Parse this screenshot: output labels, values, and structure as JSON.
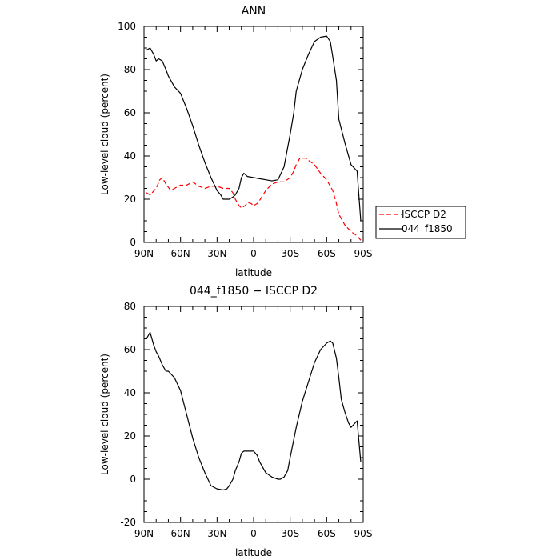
{
  "chart_data": [
    {
      "type": "line",
      "title": "ANN",
      "xlabel": "latitude",
      "ylabel": "Low-level cloud (percent)",
      "x_tick_labels": [
        "90N",
        "60N",
        "30N",
        "0",
        "30S",
        "60S",
        "90S"
      ],
      "x_tick_values": [
        90,
        60,
        30,
        0,
        -30,
        -60,
        -90
      ],
      "xlim": [
        90,
        -90
      ],
      "ylim": [
        0,
        100
      ],
      "y_ticks": [
        0,
        20,
        40,
        60,
        80,
        100
      ],
      "legend": "right",
      "series": [
        {
          "name": "ISCCP D2",
          "color": "#ff0000",
          "dash": "dashed",
          "x": [
            88,
            85,
            80,
            77,
            75,
            72,
            68,
            65,
            60,
            55,
            50,
            45,
            40,
            35,
            30,
            25,
            20,
            17,
            15,
            12,
            10,
            7,
            5,
            2,
            0,
            -3,
            -5,
            -10,
            -15,
            -20,
            -25,
            -30,
            -33,
            -35,
            -38,
            -40,
            -43,
            -45,
            -50,
            -55,
            -60,
            -65,
            -68,
            -70,
            -75,
            -80,
            -85,
            -88
          ],
          "y": [
            23,
            22,
            25,
            29,
            30,
            27,
            24,
            25,
            26.5,
            26.5,
            28,
            26,
            25,
            26,
            26,
            25,
            25,
            23,
            20,
            17,
            16,
            17,
            18.5,
            18,
            17,
            18,
            19.5,
            24,
            27,
            28,
            28,
            30,
            33,
            36,
            39,
            39,
            39,
            38,
            36,
            32,
            29,
            24,
            18,
            13,
            8,
            5,
            3,
            1
          ]
        },
        {
          "name": "044_f1850",
          "color": "#000000",
          "dash": "solid",
          "x": [
            88,
            85,
            82,
            80,
            78,
            75,
            72,
            70,
            65,
            60,
            55,
            50,
            45,
            40,
            35,
            30,
            27,
            25,
            22,
            20,
            17,
            15,
            12,
            10,
            8,
            5,
            0,
            -5,
            -10,
            -15,
            -20,
            -25,
            -30,
            -33,
            -35,
            -40,
            -45,
            -50,
            -55,
            -60,
            -63,
            -65,
            -68,
            -70,
            -75,
            -80,
            -85,
            -88
          ],
          "y": [
            89,
            90,
            87,
            84,
            85,
            84,
            80,
            77,
            72,
            69,
            62,
            54,
            45,
            37,
            30,
            24,
            22,
            20,
            20,
            20,
            21,
            22,
            25,
            30,
            32,
            30.5,
            30,
            29.5,
            29,
            28.5,
            29,
            35,
            50,
            60,
            70,
            80,
            87,
            93,
            95,
            95.5,
            93,
            86,
            75,
            57,
            46,
            36,
            33,
            10
          ]
        }
      ]
    },
    {
      "type": "line",
      "title": "044_f1850 − ISCCP D2",
      "xlabel": "latitude",
      "ylabel": "Low-level cloud (percent)",
      "x_tick_labels": [
        "90N",
        "60N",
        "30N",
        "0",
        "30S",
        "60S",
        "90S"
      ],
      "x_tick_values": [
        90,
        60,
        30,
        0,
        -30,
        -60,
        -90
      ],
      "xlim": [
        90,
        -90
      ],
      "ylim": [
        -20,
        80
      ],
      "y_ticks": [
        -20,
        0,
        20,
        40,
        60,
        80
      ],
      "legend": "none",
      "series": [
        {
          "name": "",
          "color": "#000000",
          "dash": "solid",
          "x": [
            88,
            85,
            82,
            80,
            78,
            75,
            72,
            70,
            65,
            60,
            55,
            50,
            45,
            40,
            35,
            30,
            25,
            22,
            20,
            17,
            15,
            12,
            10,
            8,
            5,
            0,
            -3,
            -5,
            -10,
            -15,
            -20,
            -22,
            -25,
            -28,
            -30,
            -35,
            -40,
            -45,
            -50,
            -55,
            -60,
            -63,
            -65,
            -68,
            -70,
            -72,
            -75,
            -78,
            -80,
            -85,
            -88
          ],
          "y": [
            65,
            68,
            62,
            59,
            57,
            53,
            50,
            50,
            47,
            41,
            30,
            19,
            10,
            3,
            -3,
            -4.5,
            -5,
            -4.5,
            -3,
            0,
            4,
            8,
            12,
            13,
            13,
            13,
            11,
            8,
            3,
            1,
            0,
            0,
            1,
            4,
            10,
            24,
            36,
            45,
            54,
            60,
            63,
            64,
            63,
            56,
            47,
            37,
            31,
            26,
            24,
            27,
            8
          ]
        }
      ]
    }
  ]
}
